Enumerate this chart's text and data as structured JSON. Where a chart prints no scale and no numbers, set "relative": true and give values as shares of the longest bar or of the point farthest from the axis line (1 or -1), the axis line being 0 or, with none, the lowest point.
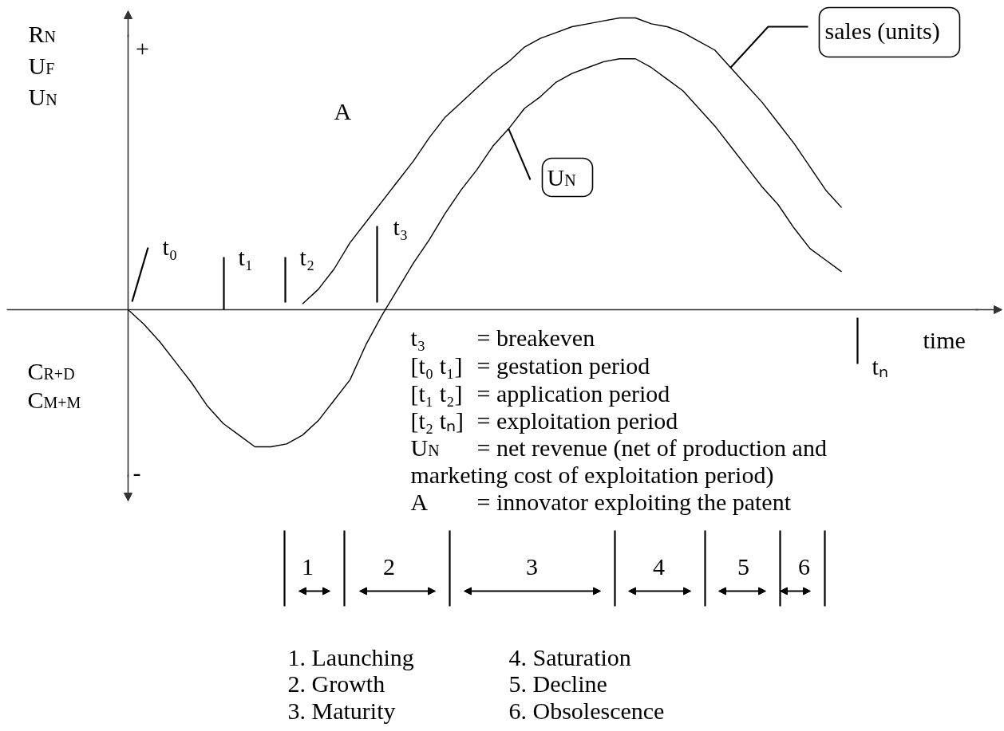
{
  "chart_data": {
    "type": "line",
    "relative": true,
    "xlabel": "time",
    "categories": [
      null,
      null,
      null,
      null,
      null,
      null,
      null,
      null,
      null,
      null,
      null,
      null,
      null,
      null,
      null,
      null,
      null,
      null,
      null,
      null,
      null,
      null,
      null,
      null,
      null,
      null,
      null,
      null,
      null,
      null,
      null,
      null,
      null,
      null,
      null,
      null,
      null,
      null,
      null,
      null,
      null,
      null,
      null,
      null,
      null,
      null
    ],
    "series": [
      {
        "name": "sales (units)",
        "color": "#000000",
        "values": [
          null,
          null,
          null,
          null,
          null,
          null,
          null,
          null,
          null,
          null,
          null,
          0.02,
          0.07,
          0.14,
          0.23,
          0.3,
          0.37,
          0.44,
          0.51,
          0.59,
          0.66,
          0.71,
          0.76,
          0.81,
          0.85,
          0.9,
          0.93,
          0.95,
          0.97,
          0.98,
          0.99,
          1.0,
          1.0,
          0.98,
          0.97,
          0.95,
          0.92,
          0.89,
          0.83,
          0.77,
          0.71,
          0.64,
          0.57,
          0.49,
          0.41,
          0.35
        ]
      },
      {
        "name": "U$_{N}$",
        "color": "#000000",
        "values": [
          0,
          -0.05,
          -0.11,
          -0.18,
          -0.25,
          -0.33,
          -0.39,
          -0.43,
          -0.47,
          -0.47,
          -0.46,
          -0.43,
          -0.38,
          -0.31,
          -0.24,
          -0.12,
          -0.02,
          0.07,
          0.16,
          0.24,
          0.33,
          0.41,
          0.48,
          0.56,
          0.62,
          0.69,
          0.73,
          0.78,
          0.81,
          0.83,
          0.85,
          0.86,
          0.86,
          0.83,
          0.79,
          0.75,
          0.69,
          0.63,
          0.56,
          0.49,
          0.42,
          0.36,
          0.28,
          0.21,
          0.17,
          0.13
        ]
      }
    ],
    "annotations": [
      "R$_{N}$",
      "U$_{F}$",
      "U$_{N}$",
      "+",
      "C$_{R+D}$",
      "C$_{M+M}$",
      "-",
      "A",
      "t₀",
      "t₁",
      "t₂",
      "t₃",
      "tₙ",
      "t₃",
      "= breakeven",
      "[t₀ t₁]",
      "= gestation period",
      "[t₁ t₂]",
      "= application period",
      "[t₂ tₙ]",
      "= exploitation period",
      "U$_{N}$",
      "= net revenue (net of production and",
      "marketing cost of exploitation period)",
      "A",
      "= innovator exploiting the patent",
      "1",
      "2",
      "3",
      "4",
      "5",
      "6",
      "1. Launching",
      "2. Growth",
      "3. Maturity",
      "4. Saturation",
      "5. Decline",
      "6. Obsolescence"
    ]
  }
}
